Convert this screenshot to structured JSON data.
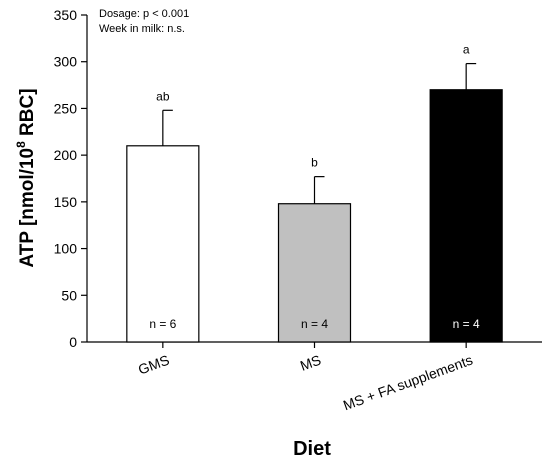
{
  "chart_data": {
    "type": "bar",
    "categories": [
      "GMS",
      "MS",
      "MS + FA supplements"
    ],
    "values": [
      210,
      148,
      270
    ],
    "errors": [
      38,
      29,
      28
    ],
    "n_labels": [
      "n = 6",
      "n = 4",
      "n = 4"
    ],
    "significance_letters": [
      "ab",
      "b",
      "a"
    ],
    "bar_colors": [
      "#ffffff",
      "#c0c0c0",
      "#000000"
    ],
    "n_label_colors": [
      "#000000",
      "#000000",
      "#ffffff"
    ],
    "ylabel": "ATP [nmol/10",
    "ylabel_sup": "8",
    "ylabel_tail": " RBC]",
    "xlabel": "Diet",
    "ylim": [
      0,
      350
    ],
    "yticks": [
      0,
      50,
      100,
      150,
      200,
      250,
      300,
      350
    ],
    "annotations": [
      "Dosage: p < 0.001",
      "Week in milk: n.s."
    ],
    "grid": false
  }
}
